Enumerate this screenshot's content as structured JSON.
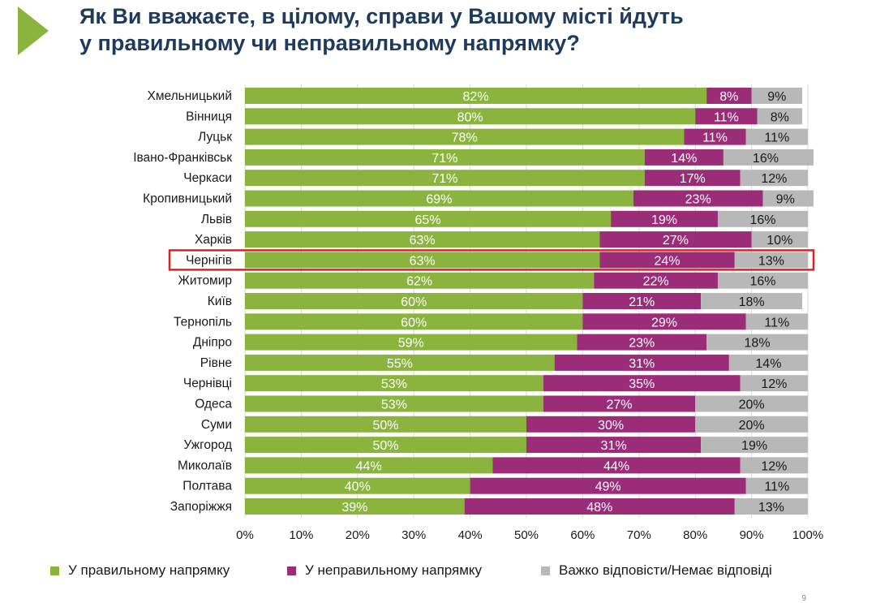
{
  "title": {
    "line1": "Як Ви вважаєте, в цілому, справи у Вашому місті йдуть",
    "line2": "у правильному чи неправильному напрямку?"
  },
  "chart_data": {
    "type": "bar",
    "orientation": "horizontal",
    "stacked": true,
    "title": "Як Ви вважаєте, в цілому, справи у Вашому місті йдуть у правильному чи неправильному напрямку?",
    "categories": [
      "Хмельницький",
      "Вінниця",
      "Луцьк",
      "Івано-Франківськ",
      "Черкаси",
      "Кропивницький",
      "Львів",
      "Харків",
      "Чернігів",
      "Житомир",
      "Київ",
      "Тернопіль",
      "Дніпро",
      "Рівне",
      "Чернівці",
      "Одеса",
      "Суми",
      "Ужгород",
      "Миколаїв",
      "Полтава",
      "Запоріжжя"
    ],
    "highlight": "Чернігів",
    "series": [
      {
        "name": "У правильному напрямку",
        "color": "#8bb43f",
        "values": [
          82,
          80,
          78,
          71,
          71,
          69,
          65,
          63,
          63,
          62,
          60,
          60,
          59,
          55,
          53,
          53,
          50,
          50,
          44,
          40,
          39
        ]
      },
      {
        "name": "У неправильному напрямку",
        "color": "#9b2d78",
        "values": [
          8,
          11,
          11,
          14,
          17,
          23,
          19,
          27,
          24,
          22,
          21,
          29,
          23,
          31,
          35,
          27,
          30,
          31,
          44,
          49,
          48
        ]
      },
      {
        "name": "Важко відповісти/Немає відповіді",
        "color": "#b8b8b8",
        "values": [
          9,
          8,
          11,
          16,
          12,
          9,
          16,
          10,
          13,
          16,
          18,
          11,
          18,
          14,
          12,
          20,
          20,
          19,
          12,
          11,
          13
        ]
      }
    ],
    "xlim": [
      0,
      100
    ],
    "xticks": [
      "0%",
      "10%",
      "20%",
      "30%",
      "40%",
      "50%",
      "60%",
      "70%",
      "80%",
      "90%",
      "100%"
    ],
    "grid": true,
    "legend_position": "bottom"
  },
  "colors": {
    "title": "#1f3b5c",
    "accent": "#8bb43f",
    "highlight_box": "#e02020"
  },
  "page_number": "9"
}
